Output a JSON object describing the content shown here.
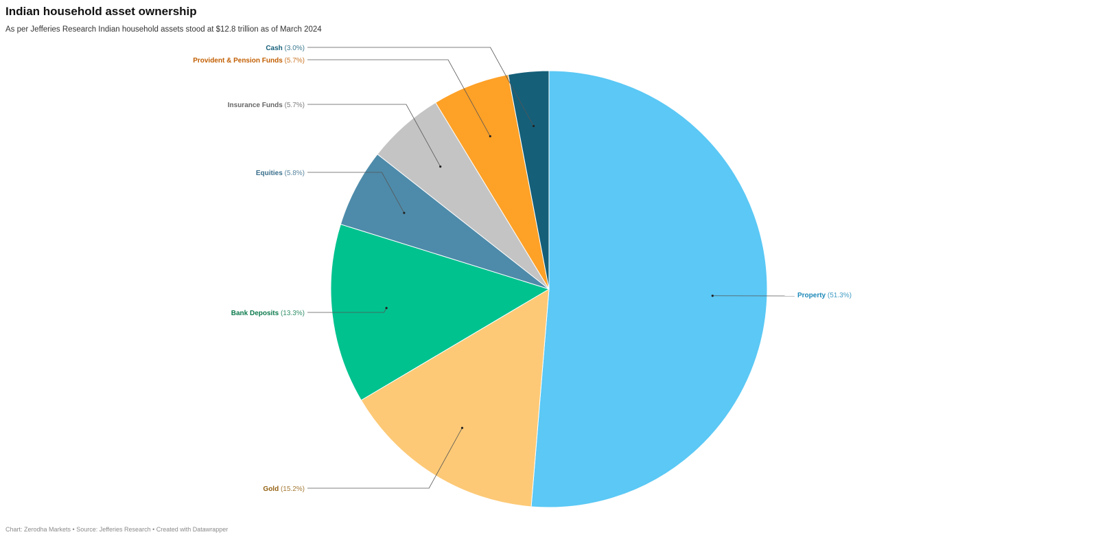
{
  "title": "Indian household asset ownership",
  "subtitle": "As per Jefferies Research Indian household assets stood at $12.8 trillion as of March 2024",
  "footer": "Chart: Zerodha Markets • Source: Jefferies Research • Created with Datawrapper",
  "chart_data": {
    "type": "pie",
    "title": "Indian household asset ownership",
    "subtitle": "As per Jefferies Research Indian household assets stood at $12.8 trillion as of March 2024",
    "start_angle_deg": 0,
    "direction": "clockwise",
    "slices": [
      {
        "name": "Property",
        "value": 51.3,
        "label": "(51.3%)",
        "color": "#5bc8f5",
        "label_color": "#1c89b8"
      },
      {
        "name": "Gold",
        "value": 15.2,
        "label": "(15.2%)",
        "color": "#fdc976",
        "label_color": "#946112"
      },
      {
        "name": "Bank Deposits",
        "value": 13.3,
        "label": "(13.3%)",
        "color": "#00c28f",
        "label_color": "#0b7a4d"
      },
      {
        "name": "Equities",
        "value": 5.8,
        "label": "(5.8%)",
        "color": "#4e8baa",
        "label_color": "#3a6f8c"
      },
      {
        "name": "Insurance Funds",
        "value": 5.7,
        "label": "(5.7%)",
        "color": "#c4c4c4",
        "label_color": "#666666"
      },
      {
        "name": "Provident & Pension Funds",
        "value": 5.7,
        "label": "(5.7%)",
        "color": "#fea127",
        "label_color": "#c25e00"
      },
      {
        "name": "Cash",
        "value": 3.0,
        "label": "(3.0%)",
        "color": "#155f79",
        "label_color": "#155f79"
      }
    ]
  }
}
